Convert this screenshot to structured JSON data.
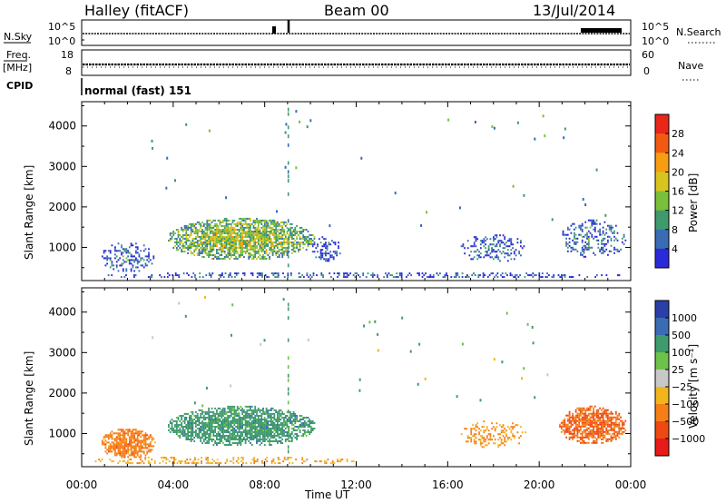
{
  "header": {
    "station": "Halley (fitACF)",
    "beam": "Beam 00",
    "date": "13/Jul/2014"
  },
  "time_axis": {
    "label": "Time UT",
    "ticks": [
      "00:00",
      "04:00",
      "08:00",
      "12:00",
      "16:00",
      "20:00",
      "00:00"
    ]
  },
  "strip_panels": {
    "nsky_label": "N.Sky",
    "nsky_ticks": [
      "10^5",
      "10^0"
    ],
    "nsearch_label": "N.Search",
    "nsearch_ticks": [
      "10^5",
      "10^0"
    ],
    "freq_label_1": "Freq.",
    "freq_label_2": "[MHz]",
    "freq_ticks": [
      "18",
      "8"
    ],
    "nave_label": "Nave",
    "nave_ticks": [
      "60",
      "0"
    ],
    "cpid_label": "CPID",
    "cpid_value": "normal (fast) 151"
  },
  "panels": {
    "power_ylabel": "Slant Range [km]",
    "velocity_ylabel": "Slant Range [km]",
    "y_ticks": [
      "4000",
      "3000",
      "2000",
      "1000"
    ]
  },
  "colorbars": {
    "power": {
      "title": "Power [dB]",
      "labels": [
        "28",
        "24",
        "20",
        "16",
        "12",
        "8",
        "4"
      ],
      "colors": [
        "#e8261a",
        "#f25a14",
        "#f79c13",
        "#d8c41e",
        "#7bbf3a",
        "#3f9a6e",
        "#3a6cb4",
        "#2a2ad8"
      ]
    },
    "velocity": {
      "title": "Velocity [m s⁻¹]",
      "labels": [
        "1000",
        "500",
        "100",
        "25",
        "−25",
        "−100",
        "−500",
        "−1000"
      ],
      "colors": [
        "#2a3fa8",
        "#3a6cb4",
        "#3f9a6e",
        "#6cc24a",
        "#c8c8c8",
        "#f2b51e",
        "#f57f16",
        "#ec4a12",
        "#e81a1a"
      ]
    }
  },
  "chart_data": [
    {
      "type": "heatmap",
      "name": "power",
      "xlabel": "Time UT",
      "ylabel": "Slant Range [km]",
      "xlim": [
        0,
        24
      ],
      "ylim": [
        180,
        4600
      ],
      "colorbar_label": "Power [dB]",
      "colorbar_ticks": [
        4,
        8,
        12,
        16,
        20,
        24,
        28
      ],
      "regions": [
        {
          "t0": 3.7,
          "t1": 10.2,
          "r0": 650,
          "r1": 1700,
          "level": 15
        },
        {
          "t0": 0.8,
          "t1": 3.2,
          "r0": 350,
          "r1": 1100,
          "level": 6
        },
        {
          "t0": 10.0,
          "t1": 11.3,
          "r0": 600,
          "r1": 1250,
          "level": 5
        },
        {
          "t0": 16.5,
          "t1": 19.4,
          "r0": 600,
          "r1": 1300,
          "level": 6
        },
        {
          "t0": 20.8,
          "t1": 23.8,
          "r0": 700,
          "r1": 1650,
          "level": 7
        },
        {
          "t0": 0.3,
          "t1": 23.8,
          "r0": 200,
          "r1": 360,
          "level": 5
        }
      ]
    },
    {
      "type": "heatmap",
      "name": "velocity",
      "xlabel": "Time UT",
      "ylabel": "Slant Range [km]",
      "xlim": [
        0,
        24
      ],
      "ylim": [
        180,
        4600
      ],
      "colorbar_label": "Velocity [m s⁻¹]",
      "colorbar_ticks": [
        -1000,
        -500,
        -100,
        -25,
        25,
        100,
        500,
        1000
      ],
      "regions": [
        {
          "t0": 3.7,
          "t1": 10.2,
          "r0": 650,
          "r1": 1650,
          "level": 300
        },
        {
          "t0": 0.8,
          "t1": 3.2,
          "r0": 350,
          "r1": 1100,
          "level": -300
        },
        {
          "t0": 16.5,
          "t1": 19.4,
          "r0": 600,
          "r1": 1300,
          "level": -150
        },
        {
          "t0": 20.8,
          "t1": 23.8,
          "r0": 700,
          "r1": 1650,
          "level": -500
        },
        {
          "t0": 0.3,
          "t1": 12.0,
          "r0": 200,
          "r1": 400,
          "level": -80
        }
      ]
    }
  ]
}
